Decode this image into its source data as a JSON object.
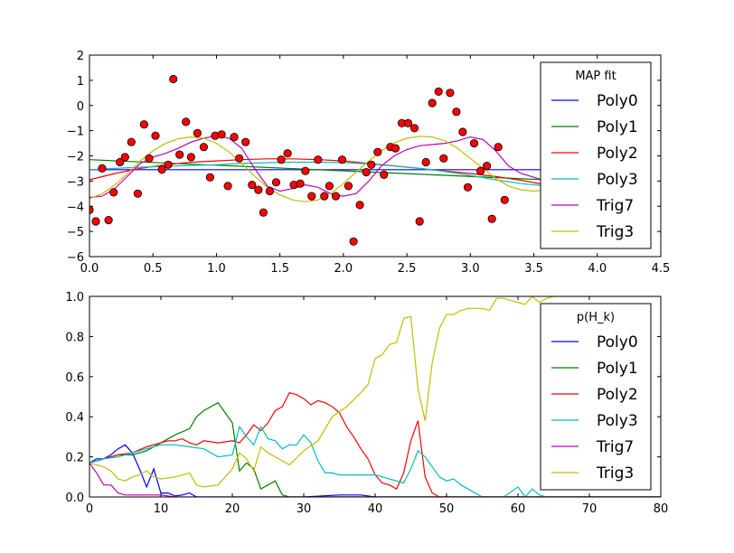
{
  "chart_data": [
    {
      "type": "line",
      "xlim": [
        0,
        4.5
      ],
      "ylim": [
        -6,
        2
      ],
      "xticks": [
        0.0,
        0.5,
        1.0,
        1.5,
        2.0,
        2.5,
        3.0,
        3.5,
        4.0,
        4.5
      ],
      "xtick_labels": [
        "0.0",
        "0.5",
        "1.0",
        "1.5",
        "2.0",
        "2.5",
        "3.0",
        "3.5",
        "4.0",
        "4.5"
      ],
      "yticks": [
        -6,
        -5,
        -4,
        -3,
        -2,
        -1,
        0,
        1,
        2
      ],
      "ytick_labels": [
        "−6",
        "−5",
        "−4",
        "−3",
        "−2",
        "−1",
        "0",
        "1",
        "2"
      ],
      "grid": false,
      "legend": {
        "title": "MAP fit",
        "placement": "upper-right"
      },
      "scatter": {
        "color": "#ff0000",
        "points": [
          [
            0.0,
            -4.15
          ],
          [
            0.05,
            -4.6
          ],
          [
            0.1,
            -2.5
          ],
          [
            0.15,
            -4.55
          ],
          [
            0.19,
            -3.45
          ],
          [
            0.24,
            -2.25
          ],
          [
            0.28,
            -2.05
          ],
          [
            0.33,
            -1.45
          ],
          [
            0.38,
            -3.5
          ],
          [
            0.43,
            -0.75
          ],
          [
            0.47,
            -2.1
          ],
          [
            0.52,
            -1.2
          ],
          [
            0.57,
            -2.55
          ],
          [
            0.62,
            -2.35
          ],
          [
            0.66,
            1.05
          ],
          [
            0.71,
            -1.95
          ],
          [
            0.76,
            -0.65
          ],
          [
            0.8,
            -2.05
          ],
          [
            0.85,
            -1.1
          ],
          [
            0.9,
            -1.65
          ],
          [
            0.95,
            -2.85
          ],
          [
            0.99,
            -1.2
          ],
          [
            1.04,
            -1.15
          ],
          [
            1.09,
            -3.2
          ],
          [
            1.14,
            -1.25
          ],
          [
            1.18,
            -2.1
          ],
          [
            1.23,
            -1.45
          ],
          [
            1.28,
            -3.15
          ],
          [
            1.33,
            -3.35
          ],
          [
            1.37,
            -4.25
          ],
          [
            1.42,
            -3.4
          ],
          [
            1.47,
            -3.05
          ],
          [
            1.51,
            -2.15
          ],
          [
            1.56,
            -1.9
          ],
          [
            1.61,
            -3.15
          ],
          [
            1.66,
            -3.1
          ],
          [
            1.7,
            -2.6
          ],
          [
            1.75,
            -3.6
          ],
          [
            1.8,
            -2.15
          ],
          [
            1.85,
            -3.6
          ],
          [
            1.89,
            -3.2
          ],
          [
            1.94,
            -3.6
          ],
          [
            1.99,
            -2.15
          ],
          [
            2.04,
            -3.2
          ],
          [
            2.08,
            -5.4
          ],
          [
            2.13,
            -3.95
          ],
          [
            2.18,
            -2.65
          ],
          [
            2.22,
            -2.35
          ],
          [
            2.27,
            -1.85
          ],
          [
            2.32,
            -2.75
          ],
          [
            2.37,
            -1.65
          ],
          [
            2.41,
            -1.7
          ],
          [
            2.46,
            -0.7
          ],
          [
            2.51,
            -0.7
          ],
          [
            2.56,
            -0.9
          ],
          [
            2.6,
            -4.6
          ],
          [
            2.65,
            -2.25
          ],
          [
            2.7,
            0.1
          ],
          [
            2.75,
            0.55
          ],
          [
            2.79,
            -2.1
          ],
          [
            2.84,
            0.5
          ],
          [
            2.89,
            -0.25
          ],
          [
            2.94,
            -1.05
          ],
          [
            2.98,
            -3.25
          ],
          [
            3.03,
            -1.5
          ],
          [
            3.08,
            -2.6
          ],
          [
            3.13,
            -2.4
          ],
          [
            3.17,
            -4.5
          ],
          [
            3.22,
            -1.65
          ],
          [
            3.27,
            -3.75
          ]
        ]
      },
      "series": [
        {
          "name": "Poly0",
          "color": "#0000ff",
          "x": [
            0,
            3.6
          ],
          "y": [
            -2.55,
            -2.55
          ]
        },
        {
          "name": "Poly1",
          "color": "#008000",
          "x": [
            0,
            3.6
          ],
          "y": [
            -2.15,
            -2.95
          ]
        },
        {
          "name": "Poly2",
          "color": "#ff0000",
          "x": [
            0,
            0.2,
            0.4,
            0.6,
            0.8,
            1.0,
            1.2,
            1.4,
            1.6,
            1.8,
            2.0,
            2.2,
            2.4,
            2.6,
            2.8,
            3.0,
            3.2,
            3.4,
            3.6
          ],
          "y": [
            -2.95,
            -2.7,
            -2.5,
            -2.35,
            -2.25,
            -2.2,
            -2.15,
            -2.12,
            -2.12,
            -2.15,
            -2.2,
            -2.3,
            -2.4,
            -2.5,
            -2.6,
            -2.7,
            -2.82,
            -2.97,
            -3.15
          ]
        },
        {
          "name": "Poly3",
          "color": "#00bfbf",
          "x": [
            0,
            0.2,
            0.4,
            0.6,
            0.8,
            1.0,
            1.2,
            1.4,
            1.6,
            1.8,
            2.0,
            2.2,
            2.4,
            2.6,
            2.8,
            3.0,
            3.2,
            3.4,
            3.6
          ],
          "y": [
            -2.55,
            -2.5,
            -2.45,
            -2.42,
            -2.38,
            -2.35,
            -2.3,
            -2.27,
            -2.25,
            -2.25,
            -2.27,
            -2.32,
            -2.4,
            -2.5,
            -2.62,
            -2.78,
            -2.95,
            -3.1,
            -3.2
          ]
        },
        {
          "name": "Trig7",
          "color": "#bf00bf",
          "x": [
            0,
            0.1,
            0.2,
            0.3,
            0.4,
            0.5,
            0.6,
            0.7,
            0.8,
            0.9,
            1.0,
            1.1,
            1.2,
            1.3,
            1.4,
            1.5,
            1.6,
            1.7,
            1.8,
            1.9,
            2.0,
            2.1,
            2.2,
            2.3,
            2.4,
            2.5,
            2.6,
            2.7,
            2.8,
            2.9,
            3.0,
            3.1,
            3.2,
            3.3,
            3.4,
            3.5,
            3.6
          ],
          "y": [
            -3.65,
            -3.6,
            -3.3,
            -2.8,
            -2.3,
            -2.05,
            -1.9,
            -1.7,
            -1.45,
            -1.3,
            -1.2,
            -1.3,
            -1.7,
            -2.5,
            -3.2,
            -3.4,
            -3.3,
            -3.15,
            -3.25,
            -3.5,
            -3.6,
            -3.5,
            -3.0,
            -2.4,
            -2.0,
            -1.75,
            -1.6,
            -1.55,
            -1.5,
            -1.4,
            -1.25,
            -1.35,
            -1.8,
            -2.4,
            -2.7,
            -2.85,
            -3.0
          ]
        },
        {
          "name": "Trig3",
          "color": "#bfbf00",
          "x": [
            0,
            0.1,
            0.2,
            0.3,
            0.4,
            0.5,
            0.6,
            0.7,
            0.8,
            0.9,
            1.0,
            1.1,
            1.2,
            1.3,
            1.4,
            1.5,
            1.6,
            1.7,
            1.8,
            1.9,
            2.0,
            2.1,
            2.2,
            2.3,
            2.4,
            2.5,
            2.6,
            2.7,
            2.8,
            2.9,
            3.0,
            3.1,
            3.2,
            3.3,
            3.4,
            3.5,
            3.6
          ],
          "y": [
            -3.7,
            -3.5,
            -3.15,
            -2.7,
            -2.2,
            -1.8,
            -1.5,
            -1.32,
            -1.25,
            -1.3,
            -1.5,
            -1.85,
            -2.3,
            -2.8,
            -3.25,
            -3.55,
            -3.75,
            -3.82,
            -3.75,
            -3.5,
            -3.1,
            -2.65,
            -2.2,
            -1.8,
            -1.48,
            -1.3,
            -1.22,
            -1.25,
            -1.4,
            -1.7,
            -2.1,
            -2.5,
            -2.9,
            -3.2,
            -3.35,
            -3.4,
            -3.35
          ]
        }
      ]
    },
    {
      "type": "line",
      "xlim": [
        0,
        80
      ],
      "ylim": [
        0,
        1
      ],
      "xticks": [
        0,
        10,
        20,
        30,
        40,
        50,
        60,
        70,
        80
      ],
      "xtick_labels": [
        "0",
        "10",
        "20",
        "30",
        "40",
        "50",
        "60",
        "70",
        "80"
      ],
      "yticks": [
        0,
        0.2,
        0.4,
        0.6,
        0.8,
        1.0
      ],
      "ytick_labels": [
        "0.0",
        "0.2",
        "0.4",
        "0.6",
        "0.8",
        "1.0"
      ],
      "grid": false,
      "legend": {
        "title": "p(H_k)",
        "placement": "upper-right"
      },
      "series": [
        {
          "name": "Poly0",
          "color": "#0000ff",
          "x": [
            0,
            1,
            2,
            3,
            4,
            5,
            6,
            7,
            8,
            9,
            10,
            11,
            12,
            13,
            14,
            15,
            16,
            20,
            30,
            35,
            38,
            40,
            45,
            80
          ],
          "y": [
            0.17,
            0.19,
            0.19,
            0.21,
            0.24,
            0.26,
            0.22,
            0.14,
            0.05,
            0.14,
            0.02,
            0.02,
            0.005,
            0.01,
            0.02,
            0.0,
            0.0,
            0.0,
            0.0,
            0.01,
            0.01,
            0.0,
            0.0,
            0.0
          ]
        },
        {
          "name": "Poly1",
          "color": "#008000",
          "x": [
            0,
            2,
            4,
            6,
            8,
            10,
            12,
            14,
            15,
            16,
            18,
            20,
            21,
            22,
            23,
            24,
            25,
            26,
            27,
            28,
            29,
            30,
            35,
            80
          ],
          "y": [
            0.17,
            0.19,
            0.21,
            0.21,
            0.23,
            0.27,
            0.31,
            0.34,
            0.4,
            0.43,
            0.47,
            0.37,
            0.13,
            0.17,
            0.14,
            0.04,
            0.06,
            0.08,
            0.01,
            0.0,
            0.0,
            0.0,
            0.0,
            0.0
          ]
        },
        {
          "name": "Poly2",
          "color": "#ff0000",
          "x": [
            0,
            2,
            4,
            6,
            8,
            10,
            11,
            12,
            13,
            14,
            15,
            16,
            18,
            20,
            21,
            22,
            23,
            24,
            25,
            26,
            27,
            28,
            29,
            30,
            31,
            32,
            33,
            34,
            35,
            36,
            37,
            38,
            39,
            40,
            41,
            42,
            43,
            44,
            45,
            46,
            47,
            48,
            49,
            50,
            80
          ],
          "y": [
            0.17,
            0.19,
            0.21,
            0.22,
            0.25,
            0.27,
            0.28,
            0.28,
            0.29,
            0.27,
            0.26,
            0.28,
            0.27,
            0.28,
            0.27,
            0.31,
            0.36,
            0.33,
            0.37,
            0.43,
            0.45,
            0.52,
            0.51,
            0.49,
            0.46,
            0.48,
            0.47,
            0.45,
            0.42,
            0.35,
            0.3,
            0.24,
            0.19,
            0.11,
            0.07,
            0.06,
            0.04,
            0.12,
            0.28,
            0.38,
            0.1,
            0.02,
            0.0,
            0.0,
            0.0
          ]
        },
        {
          "name": "Poly3",
          "color": "#00bfbf",
          "x": [
            0,
            2,
            4,
            6,
            8,
            10,
            12,
            14,
            16,
            18,
            20,
            21,
            22,
            23,
            24,
            25,
            26,
            27,
            28,
            29,
            30,
            31,
            32,
            33,
            34,
            35,
            36,
            40,
            44,
            45,
            46,
            47,
            48,
            49,
            50,
            51,
            52,
            55,
            58,
            60,
            61,
            62,
            63,
            64,
            80
          ],
          "y": [
            0.17,
            0.19,
            0.2,
            0.22,
            0.24,
            0.26,
            0.26,
            0.25,
            0.24,
            0.2,
            0.21,
            0.35,
            0.3,
            0.26,
            0.35,
            0.29,
            0.28,
            0.24,
            0.26,
            0.26,
            0.31,
            0.27,
            0.18,
            0.12,
            0.12,
            0.11,
            0.11,
            0.11,
            0.07,
            0.14,
            0.23,
            0.2,
            0.15,
            0.1,
            0.08,
            0.09,
            0.06,
            0.0,
            0.0,
            0.05,
            0.0,
            0.04,
            0.01,
            0.0,
            0.0
          ]
        },
        {
          "name": "Trig7",
          "color": "#bf00bf",
          "x": [
            0,
            1,
            2,
            3,
            4,
            5,
            6,
            8,
            10,
            12,
            15,
            80
          ],
          "y": [
            0.17,
            0.12,
            0.06,
            0.06,
            0.02,
            0.01,
            0.01,
            0.01,
            0.01,
            0.0,
            0.0,
            0.0
          ]
        },
        {
          "name": "Trig3",
          "color": "#bfbf00",
          "x": [
            0,
            1,
            2,
            3,
            4,
            5,
            6,
            7,
            8,
            9,
            10,
            12,
            14,
            15,
            16,
            18,
            20,
            21,
            22,
            23,
            24,
            25,
            26,
            28,
            30,
            32,
            34,
            36,
            38,
            39,
            40,
            41,
            42,
            43,
            44,
            45,
            46,
            47,
            48,
            49,
            50,
            51,
            52,
            53,
            55,
            56,
            57,
            58,
            60,
            61,
            62,
            63,
            64,
            65,
            66,
            67,
            68,
            70,
            72,
            75,
            78,
            80
          ],
          "y": [
            0.17,
            0.16,
            0.15,
            0.13,
            0.09,
            0.08,
            0.1,
            0.11,
            0.13,
            0.1,
            0.09,
            0.1,
            0.12,
            0.06,
            0.05,
            0.06,
            0.14,
            0.22,
            0.19,
            0.13,
            0.25,
            0.22,
            0.2,
            0.16,
            0.23,
            0.28,
            0.4,
            0.45,
            0.52,
            0.56,
            0.69,
            0.71,
            0.76,
            0.77,
            0.89,
            0.9,
            0.54,
            0.38,
            0.67,
            0.84,
            0.91,
            0.91,
            0.93,
            0.94,
            0.94,
            0.93,
            0.99,
            0.99,
            0.97,
            0.96,
            1.0,
            0.97,
            0.99,
            1.0,
            1.0,
            1.0,
            1.0,
            1.0,
            1.0,
            1.0,
            1.0,
            1.0
          ]
        }
      ]
    }
  ]
}
